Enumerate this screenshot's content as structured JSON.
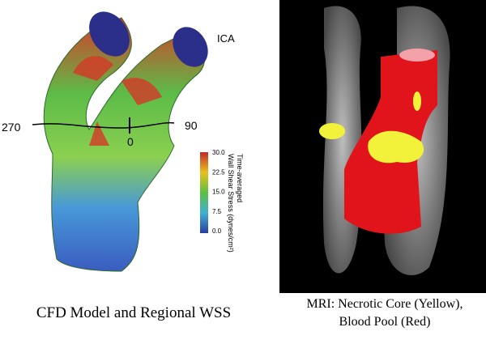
{
  "left_panel": {
    "labels": {
      "ica": "ICA",
      "angle_270": "270",
      "angle_0": "0",
      "angle_90": "90"
    },
    "colorbar": {
      "title": "Time-averaged",
      "subtitle": "Wall Shear Stress (dynes/cm²)",
      "ticks": [
        "30.0",
        "22.5",
        "15.0",
        "7.5",
        "0.0"
      ]
    },
    "caption": "CFD Model and Regional WSS"
  },
  "right_panel": {
    "caption_line1": "MRI: Necrotic Core (Yellow),",
    "caption_line2": "Blood Pool (Red)"
  }
}
